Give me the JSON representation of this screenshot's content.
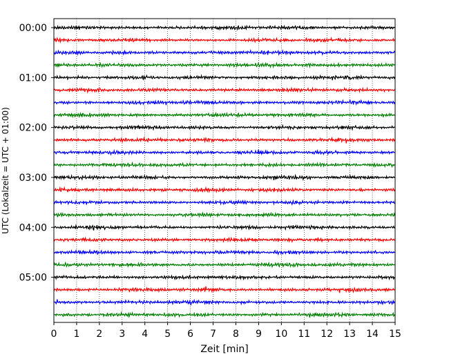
{
  "chart_data": {
    "type": "line",
    "title": "",
    "xlabel": "Zeit  [min]",
    "ylabel": "UTC (Lokalzeit = UTC + 01:00)",
    "xlim": [
      0,
      15
    ],
    "x_ticks": [
      "0",
      "1",
      "2",
      "3",
      "4",
      "5",
      "6",
      "7",
      "8",
      "9",
      "10",
      "11",
      "12",
      "13",
      "14",
      "15"
    ],
    "y_tick_labels": [
      "00:00",
      "01:00",
      "02:00",
      "03:00",
      "04:00",
      "05:00"
    ],
    "rows_per_hour": 4,
    "minutes_per_row": 15,
    "row_count": 24,
    "row_colors": [
      "#000000",
      "#ff0000",
      "#0000ff",
      "#008000"
    ],
    "grid": "x"
  }
}
